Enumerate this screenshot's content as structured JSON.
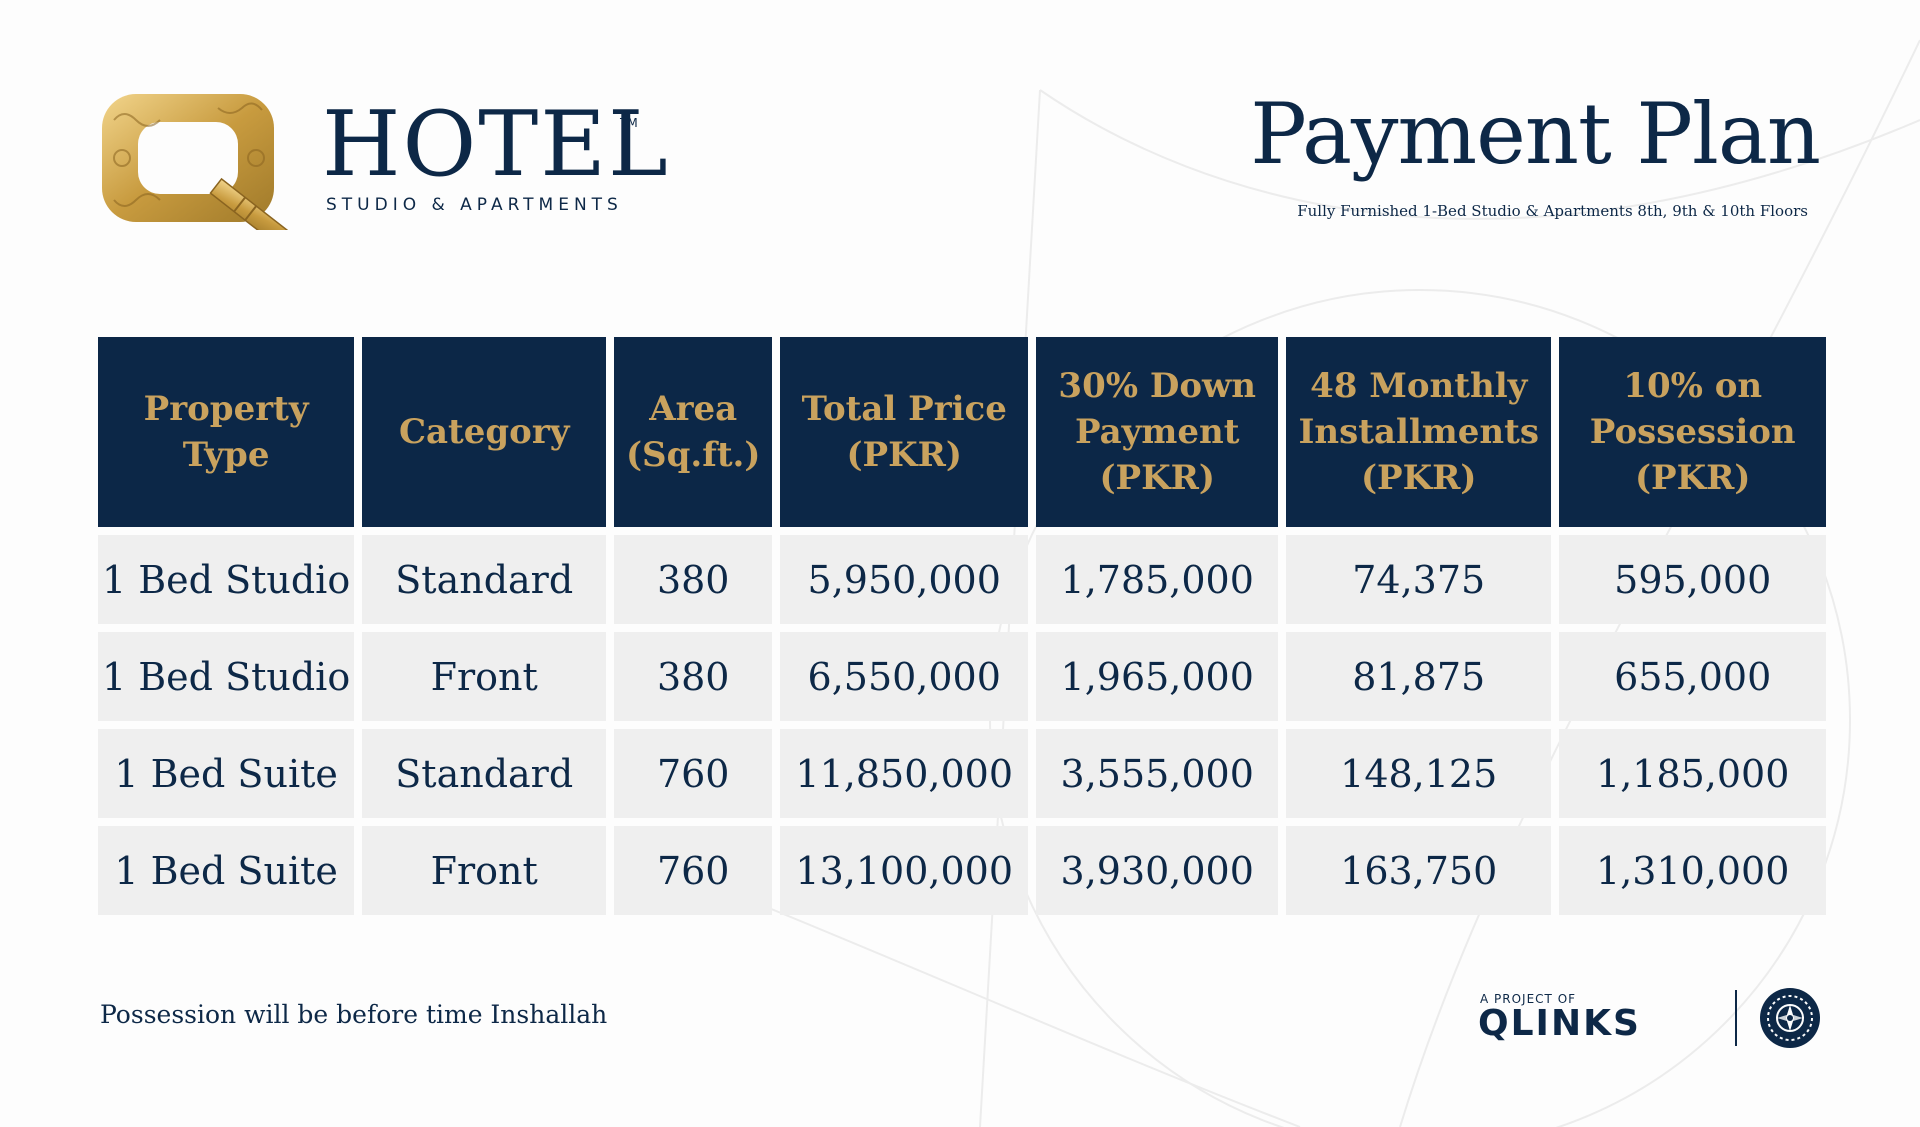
{
  "brand": {
    "mark_letter": "Q",
    "name": "HOTEL",
    "trademark": "TM",
    "tagline": "STUDIO & APARTMENTS"
  },
  "header": {
    "title": "Payment Plan",
    "subtitle": "Fully Furnished 1-Bed Studio & Apartments  8th, 9th & 10th Floors"
  },
  "table": {
    "columns": [
      {
        "lines": [
          "Property",
          "Type"
        ]
      },
      {
        "lines": [
          "Category"
        ]
      },
      {
        "lines": [
          "Area",
          "(Sq.ft.)"
        ]
      },
      {
        "lines": [
          "Total Price",
          "(PKR)"
        ]
      },
      {
        "lines": [
          "30% Down",
          "Payment",
          "(PKR)"
        ]
      },
      {
        "lines": [
          "48 Monthly",
          "Installments",
          "(PKR)"
        ]
      },
      {
        "lines": [
          "10% on",
          "Possession",
          "(PKR)"
        ]
      }
    ],
    "rows": [
      [
        "1 Bed Studio",
        "Standard",
        "380",
        "5,950,000",
        "1,785,000",
        "74,375",
        "595,000"
      ],
      [
        "1 Bed Studio",
        "Front",
        "380",
        "6,550,000",
        "1,965,000",
        "81,875",
        "655,000"
      ],
      [
        "1 Bed Suite",
        "Standard",
        "760",
        "11,850,000",
        "3,555,000",
        "148,125",
        "1,185,000"
      ],
      [
        "1 Bed Suite",
        "Front",
        "760",
        "13,100,000",
        "3,930,000",
        "163,750",
        "1,310,000"
      ]
    ]
  },
  "footer": {
    "note": "Possession will be before time Inshallah",
    "project_label": "A PROJECT OF",
    "project_logo": "QLINKS"
  },
  "colors": {
    "navy": "#0c2747",
    "gold": "#c9a25e",
    "row_bg": "#efefef"
  },
  "icons": {
    "brand_mark": "q-ornament-logo-icon",
    "seal": "round-seal-icon"
  }
}
